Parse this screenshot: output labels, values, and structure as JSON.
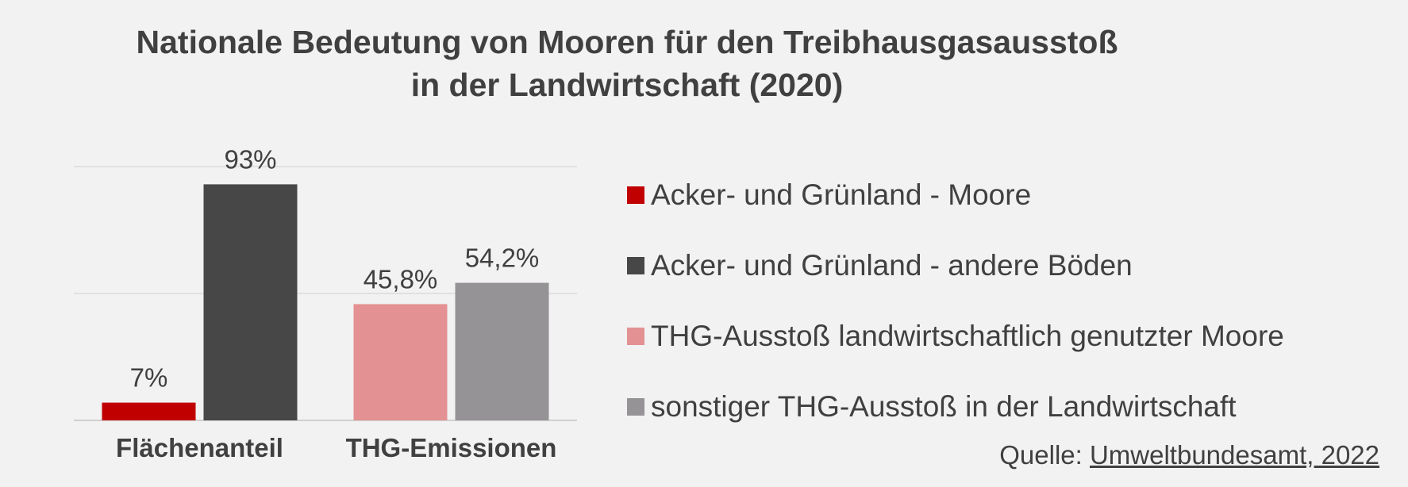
{
  "title_line1": "Nationale Bedeutung von Mooren für den Treibhausgasausstoß",
  "title_line2": "in der Landwirtschaft (2020)",
  "source": {
    "prefix": "Quelle: ",
    "link_text": "Umweltbundesamt, 2022"
  },
  "chart_data": {
    "type": "bar",
    "title": "Nationale Bedeutung von Mooren für den Treibhausgasausstoß in der Landwirtschaft (2020)",
    "categories": [
      "Flächenanteil",
      "THG-Emissionen"
    ],
    "ylim": [
      0,
      100
    ],
    "grid": true,
    "legend_position": "right",
    "groups": [
      {
        "category": "Flächenanteil",
        "bars": [
          {
            "series": "Acker- und Grünland - Moore",
            "value": 7,
            "label": "7%",
            "color": "#c00000"
          },
          {
            "series": "Acker- und Grünland - andere Böden",
            "value": 93,
            "label": "93%",
            "color": "#474747"
          }
        ]
      },
      {
        "category": "THG-Emissionen",
        "bars": [
          {
            "series": "THG-Ausstoß landwirtschaftlich genutzter Moore",
            "value": 45.8,
            "label": "45,8%",
            "color": "#e39193"
          },
          {
            "series": "sonstiger THG-Ausstoß in der Landwirtschaft",
            "value": 54.2,
            "label": "54,2%",
            "color": "#959395"
          }
        ]
      }
    ],
    "legend": [
      {
        "label": "Acker- und Grünland - Moore",
        "color": "#c00000"
      },
      {
        "label": "Acker- und Grünland - andere Böden",
        "color": "#474747"
      },
      {
        "label": "THG-Ausstoß landwirtschaftlich genutzter Moore",
        "color": "#e39193"
      },
      {
        "label": "sonstiger THG-Ausstoß in der Landwirtschaft",
        "color": "#959395"
      }
    ]
  }
}
